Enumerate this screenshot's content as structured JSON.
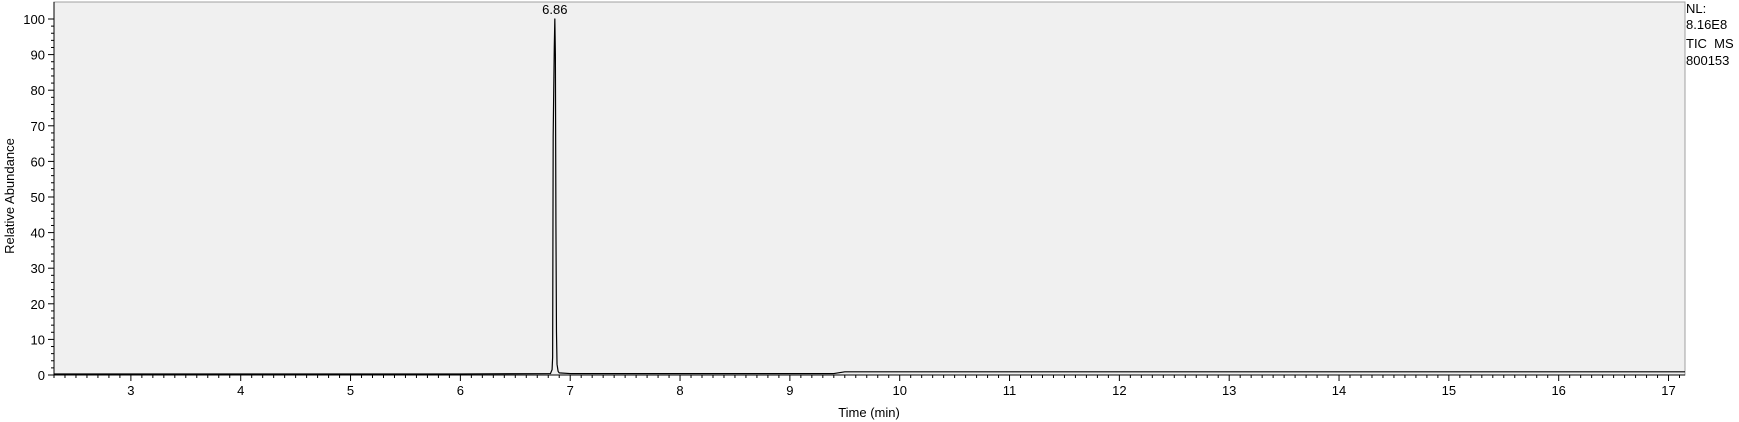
{
  "chart_data": {
    "type": "line",
    "xlabel": "Time (min)",
    "ylabel": "Relative Abundance",
    "xlim": [
      2.3,
      17.15
    ],
    "ylim": [
      0,
      100
    ],
    "x_ticks": [
      3,
      4,
      5,
      6,
      7,
      8,
      9,
      10,
      11,
      12,
      13,
      14,
      15,
      16,
      17
    ],
    "y_ticks": [
      0,
      10,
      20,
      30,
      40,
      50,
      60,
      70,
      80,
      90,
      100
    ],
    "grid": false,
    "series": [
      {
        "x": [
          2.3,
          6.0,
          6.82,
          6.835,
          6.84,
          6.845,
          6.85,
          6.855,
          6.86,
          6.865,
          6.87,
          6.875,
          6.88,
          6.89,
          6.9,
          7.0,
          8.0,
          9.0,
          9.4,
          9.5,
          10.0,
          12.0,
          14.0,
          16.0,
          17.15
        ],
        "y": [
          0.3,
          0.3,
          0.4,
          1.5,
          5,
          67,
          80,
          92,
          100,
          90,
          42,
          12,
          3,
          1.0,
          0.6,
          0.4,
          0.4,
          0.4,
          0.4,
          0.9,
          0.9,
          0.9,
          0.9,
          0.9,
          0.9
        ]
      }
    ],
    "annotations": [
      {
        "text": "6.86",
        "x": 6.86,
        "y": 100
      }
    ]
  },
  "info": {
    "nl_label": "NL:",
    "nl_value": "8.16E8",
    "scan": "TIC  MS",
    "sample": "800153"
  }
}
